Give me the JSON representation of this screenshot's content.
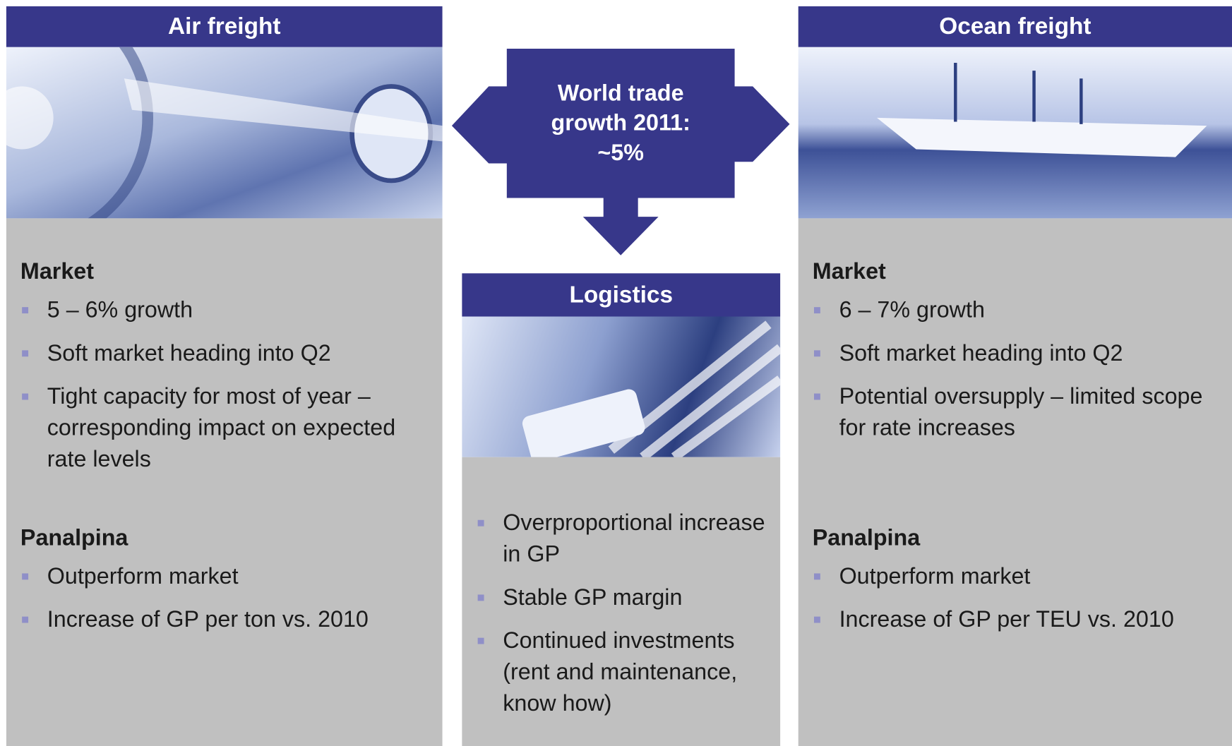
{
  "air": {
    "title": "Air freight",
    "sections": [
      {
        "heading": "Market",
        "bullets": [
          "5 – 6% growth",
          "Soft market heading into Q2",
          "Tight capacity for most of year – corresponding impact on expected rate levels"
        ]
      },
      {
        "heading": "Panalpina",
        "bullets": [
          "Outperform market",
          "Increase of GP per ton vs. 2010"
        ]
      }
    ]
  },
  "center": {
    "label_lines": [
      "World trade",
      "growth 2011:",
      "~5%"
    ]
  },
  "logistics": {
    "title": "Logistics",
    "bullets": [
      "Overproportional increase in GP",
      "Stable GP margin",
      "Continued investments (rent and maintenance, know how)"
    ]
  },
  "ocean": {
    "title": "Ocean freight",
    "sections": [
      {
        "heading": "Market",
        "bullets": [
          "6 – 7% growth",
          "Soft market heading into Q2",
          "Potential oversupply – limited scope for rate increases"
        ]
      },
      {
        "heading": "Panalpina",
        "bullets": [
          "Outperform market",
          "Increase of GP per TEU vs. 2010"
        ]
      }
    ]
  }
}
